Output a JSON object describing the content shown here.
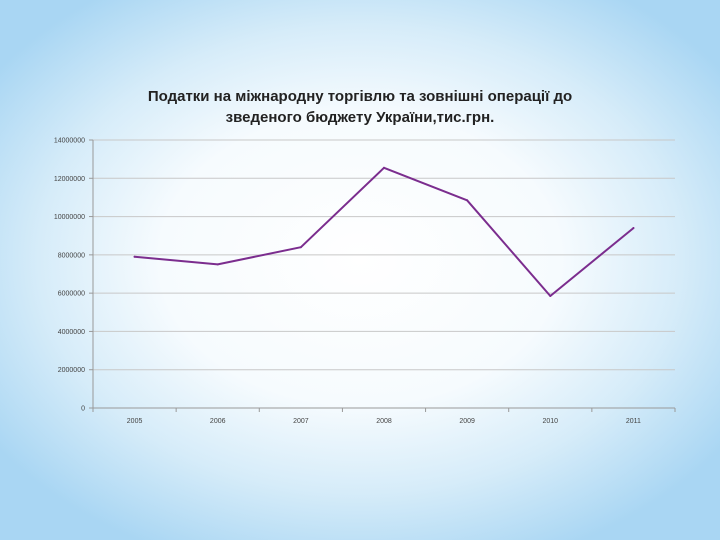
{
  "chart_data": {
    "type": "line",
    "title_line1": "Податки на міжнародну торгівлю та зовнішні операції до",
    "title_line2": "зведеного бюджету України,тис.грн.",
    "xlabel": "",
    "ylabel": "",
    "categories": [
      "2005",
      "2006",
      "2007",
      "2008",
      "2009",
      "2010",
      "2011"
    ],
    "series": [
      {
        "values": [
          7900000,
          7500000,
          8400000,
          12550000,
          10850000,
          5850000,
          9400000
        ]
      }
    ],
    "ylim": [
      0,
      14000000
    ],
    "yticks": [
      0,
      2000000,
      4000000,
      6000000,
      8000000,
      10000000,
      12000000,
      14000000
    ],
    "grid": true,
    "legend": "none",
    "line_color": "#7b2d8e",
    "grid_color": "#c8c8c8"
  }
}
